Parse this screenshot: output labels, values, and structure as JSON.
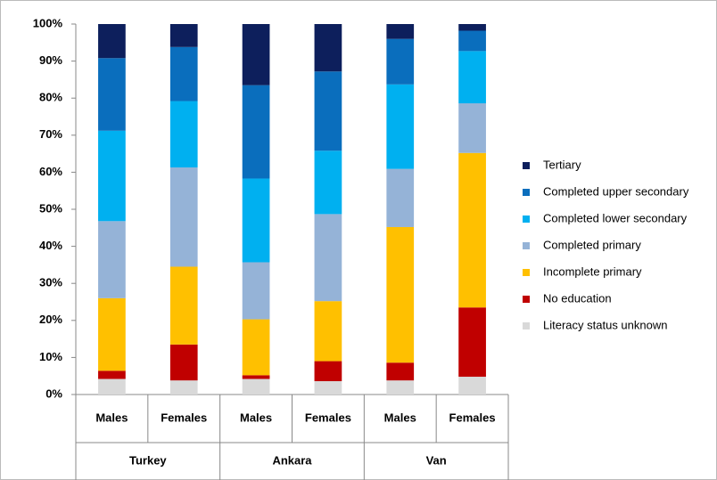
{
  "chart_data": {
    "type": "stacked_bar",
    "categories": [
      "Males",
      "Females",
      "Males",
      "Females",
      "Males",
      "Females"
    ],
    "category_groups": [
      "Turkey",
      "Ankara",
      "Van"
    ],
    "series": [
      {
        "name": "Literacy status unknown",
        "color": "#d9d9d9",
        "values": [
          4.2,
          3.8,
          4.2,
          3.6,
          3.8,
          4.8
        ]
      },
      {
        "name": "No education",
        "color": "#c00000",
        "values": [
          2.2,
          9.7,
          1.0,
          5.4,
          4.8,
          18.7
        ]
      },
      {
        "name": "Incomplete primary",
        "color": "#ffc000",
        "values": [
          19.6,
          21.0,
          15.1,
          16.2,
          36.6,
          41.7
        ]
      },
      {
        "name": "Completed primary",
        "color": "#95b3d7",
        "values": [
          20.8,
          26.8,
          15.4,
          23.5,
          15.7,
          13.4
        ]
      },
      {
        "name": "Completed lower secondary",
        "color": "#00b0f0",
        "values": [
          24.4,
          17.9,
          22.6,
          17.1,
          22.8,
          14.1
        ]
      },
      {
        "name": "Completed upper secondary",
        "color": "#0a6ebd",
        "values": [
          19.6,
          14.6,
          25.2,
          21.4,
          12.3,
          5.5
        ]
      },
      {
        "name": "Tertiary",
        "color": "#0d1f5c",
        "values": [
          9.2,
          6.2,
          16.5,
          12.8,
          4.0,
          1.8
        ]
      }
    ],
    "ylim": [
      0,
      100
    ],
    "yticks": [
      {
        "value": 0,
        "label": "0%"
      },
      {
        "value": 10,
        "label": "10%"
      },
      {
        "value": 20,
        "label": "20%"
      },
      {
        "value": 30,
        "label": "30%"
      },
      {
        "value": 40,
        "label": "40%"
      },
      {
        "value": 50,
        "label": "50%"
      },
      {
        "value": 60,
        "label": "60%"
      },
      {
        "value": 70,
        "label": "70%"
      },
      {
        "value": 80,
        "label": "80%"
      },
      {
        "value": 90,
        "label": "90%"
      },
      {
        "value": 100,
        "label": "100%"
      }
    ],
    "grid": false,
    "legend": "right"
  }
}
